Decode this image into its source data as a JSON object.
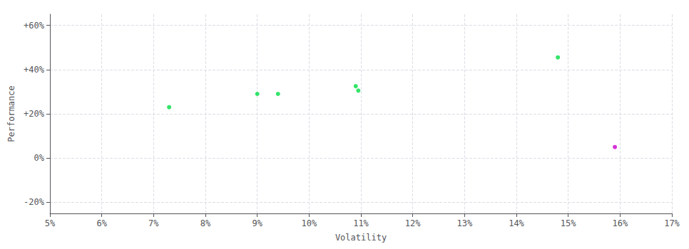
{
  "chart_data": {
    "type": "scatter",
    "xlabel": "Volatility",
    "ylabel": "Performance",
    "xlim": [
      0.05,
      0.17
    ],
    "ylim": [
      -0.25,
      0.65
    ],
    "xticks": [
      {
        "value": 0.05,
        "label": "5%"
      },
      {
        "value": 0.06,
        "label": "6%"
      },
      {
        "value": 0.07,
        "label": "7%"
      },
      {
        "value": 0.08,
        "label": "8%"
      },
      {
        "value": 0.09,
        "label": "9%"
      },
      {
        "value": 0.1,
        "label": "10%"
      },
      {
        "value": 0.11,
        "label": "11%"
      },
      {
        "value": 0.12,
        "label": "12%"
      },
      {
        "value": 0.13,
        "label": "13%"
      },
      {
        "value": 0.14,
        "label": "14%"
      },
      {
        "value": 0.15,
        "label": "15%"
      },
      {
        "value": 0.16,
        "label": "16%"
      },
      {
        "value": 0.17,
        "label": "17%"
      }
    ],
    "yticks": [
      {
        "value": -0.2,
        "label": "-20%"
      },
      {
        "value": 0.0,
        "label": "0%"
      },
      {
        "value": 0.2,
        "label": "+20%"
      },
      {
        "value": 0.4,
        "label": "+40%"
      },
      {
        "value": 0.6,
        "label": "+60%"
      }
    ],
    "grid": true,
    "series": [
      {
        "color": "#00dd44",
        "x": [
          0.073,
          0.09,
          0.094,
          0.109,
          0.1095,
          0.148
        ],
        "values": [
          0.23,
          0.29,
          0.29,
          0.325,
          0.305,
          0.455
        ]
      },
      {
        "color": "#cc00cc",
        "x": [
          0.159
        ],
        "values": [
          0.05
        ]
      }
    ]
  }
}
